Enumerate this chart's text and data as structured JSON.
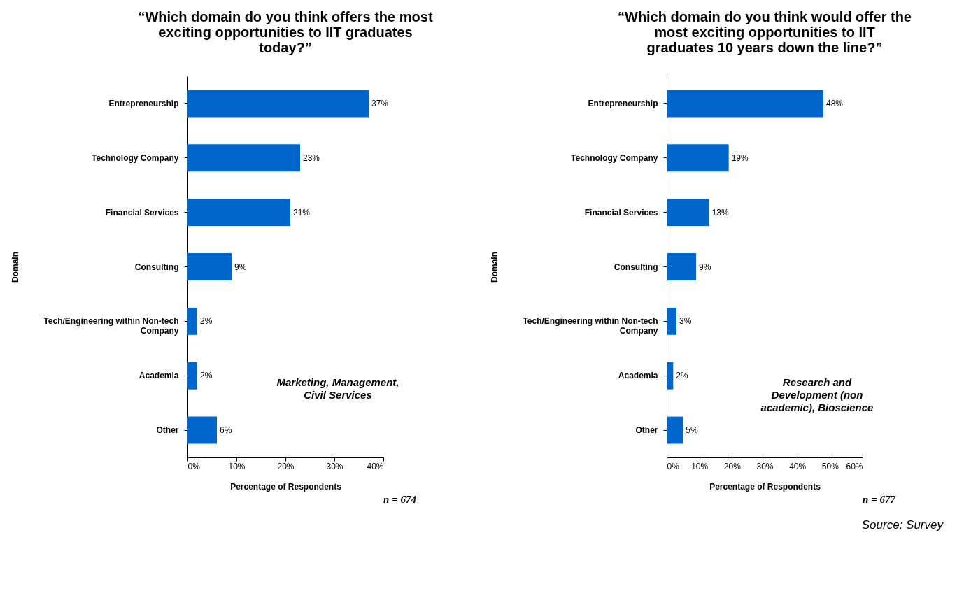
{
  "chart_data": [
    {
      "type": "bar",
      "orientation": "horizontal",
      "title": "“Which domain do you think offers the most exciting opportunities to IIT graduates today?”",
      "xlabel": "Percentage of Respondents",
      "ylabel": "Domain",
      "categories": [
        "Entrepreneurship",
        "Technology Company",
        "Financial Services",
        "Consulting",
        "Tech/Engineering within Non-tech Company",
        "Academia",
        "Other"
      ],
      "series": [
        {
          "color": "#0066cc",
          "values": [
            37,
            23,
            21,
            9,
            2,
            2,
            6
          ]
        }
      ],
      "value_labels": [
        "37%",
        "23%",
        "21%",
        "9%",
        "2%",
        "2%",
        "6%"
      ],
      "xlim": [
        0,
        40
      ],
      "xticks": [
        {
          "value": 0,
          "label": "0%"
        },
        {
          "value": 10,
          "label": "10%"
        },
        {
          "value": 20,
          "label": "20%"
        },
        {
          "value": 30,
          "label": "30%"
        },
        {
          "value": 40,
          "label": "40%"
        }
      ],
      "annotations": [
        "Marketing, Management, Civil Services",
        "n = 674"
      ]
    },
    {
      "type": "bar",
      "orientation": "horizontal",
      "title": "“Which domain do you think would offer the most exciting opportunities to IIT graduates 10 years down the line?”",
      "xlabel": "Percentage of Respondents",
      "ylabel": "Domain",
      "categories": [
        "Entrepreneurship",
        "Technology Company",
        "Financial Services",
        "Consulting",
        "Tech/Engineering within Non-tech Company",
        "Academia",
        "Other"
      ],
      "series": [
        {
          "color": "#0066cc",
          "values": [
            48,
            19,
            13,
            9,
            3,
            2,
            5
          ]
        }
      ],
      "value_labels": [
        "48%",
        "19%",
        "13%",
        "9%",
        "3%",
        "2%",
        "5%"
      ],
      "xlim": [
        0,
        60
      ],
      "xticks": [
        {
          "value": 0,
          "label": "0%"
        },
        {
          "value": 10,
          "label": "10%"
        },
        {
          "value": 20,
          "label": "20%"
        },
        {
          "value": 30,
          "label": "30%"
        },
        {
          "value": 40,
          "label": "40%"
        },
        {
          "value": 50,
          "label": "50%"
        },
        {
          "value": 60,
          "label": "60%"
        }
      ],
      "annotations": [
        "Research and Development (non academic), Bioscience",
        "n = 677",
        "Source:   Survey"
      ]
    }
  ]
}
